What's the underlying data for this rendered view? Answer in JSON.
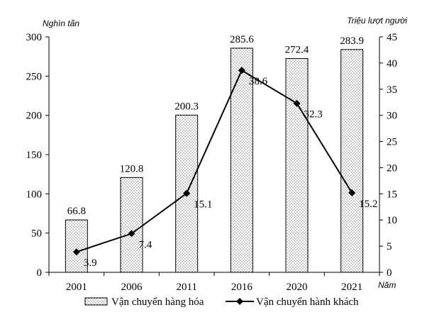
{
  "chart_data": {
    "type": "bar",
    "categories": [
      "2001",
      "2006",
      "2011",
      "2016",
      "2020",
      "2021"
    ],
    "series": [
      {
        "name": "Vận chuyển hàng hóa",
        "type": "bar",
        "axis": "left",
        "values": [
          66.8,
          120.8,
          200.3,
          285.6,
          272.4,
          283.9
        ],
        "labels": [
          "66.8",
          "120.8",
          "200.3",
          "285.6",
          "272.4",
          "283.9"
        ]
      },
      {
        "name": "Vận chuyển hành khách",
        "type": "line",
        "axis": "right",
        "values": [
          3.9,
          7.4,
          15.1,
          38.6,
          32.3,
          15.2
        ],
        "labels": [
          "3.9",
          "7.4",
          "15.1",
          "38.6",
          "32.3",
          "15.2"
        ]
      }
    ],
    "left_axis": {
      "unit": "Nghìn tấn",
      "ylim": [
        0,
        300
      ],
      "ticks": [
        "0",
        "50",
        "100",
        "150",
        "200",
        "250",
        "300"
      ]
    },
    "right_axis": {
      "unit": "Triệu lượt người",
      "ylim": [
        0,
        45
      ],
      "ticks": [
        "0",
        "5",
        "10",
        "15",
        "20",
        "25",
        "30",
        "35",
        "40",
        "45"
      ]
    },
    "x_unit": "Năm",
    "grid": false,
    "legend": "bottom"
  }
}
